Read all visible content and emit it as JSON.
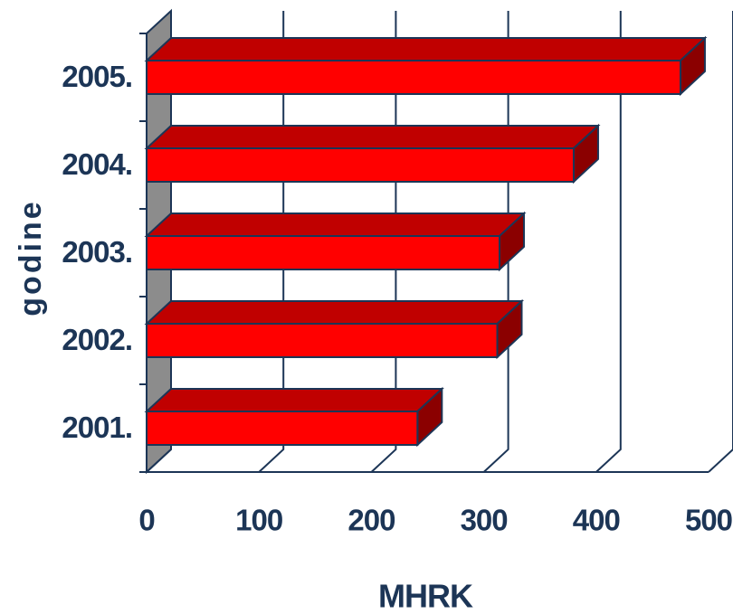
{
  "chart_data": {
    "type": "bar",
    "orientation": "horizontal",
    "three_d": true,
    "categories": [
      "2001.",
      "2002.",
      "2003.",
      "2004.",
      "2005."
    ],
    "values": [
      241,
      312,
      314,
      380,
      475
    ],
    "color": "#ff0000",
    "xlim": [
      0,
      500
    ],
    "xticks": [
      0,
      100,
      200,
      300,
      400,
      500
    ],
    "xlabel": "MHRK",
    "ylabel": "godine",
    "grid": true
  }
}
